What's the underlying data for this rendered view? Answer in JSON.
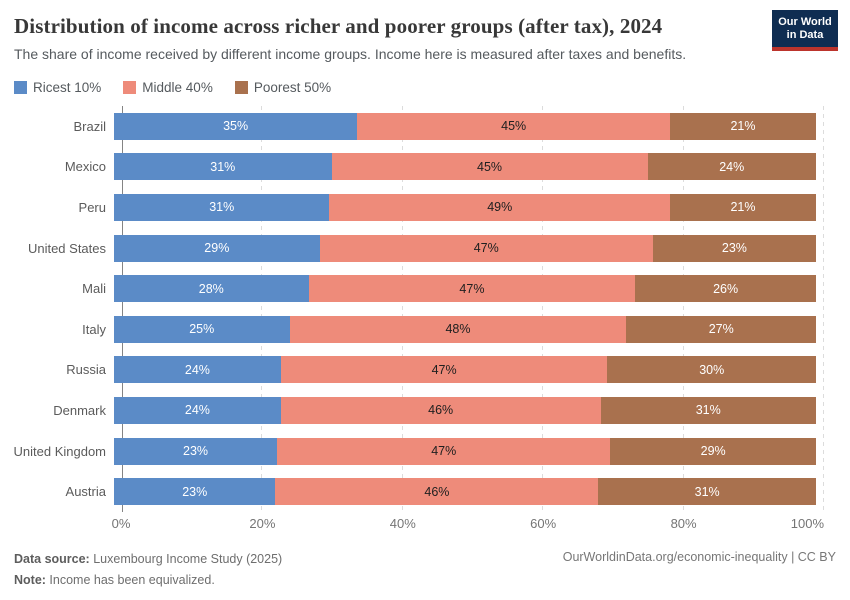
{
  "header": {
    "title": "Distribution of income across richer and poorer groups (after tax), 2024",
    "subtitle": "The share of income received by different income groups. Income here is measured after taxes and benefits.",
    "logo": {
      "line1": "Our World",
      "line2": "in Data"
    }
  },
  "colors": {
    "richest": "#5b8bc7",
    "middle": "#ee8b7a",
    "poorest": "#a9714e",
    "logo_navy": "#0f2d52",
    "logo_red": "#bc342c"
  },
  "legend": [
    {
      "label": "Ricest 10%",
      "color": "#5b8bc7"
    },
    {
      "label": "Middle 40%",
      "color": "#ee8b7a"
    },
    {
      "label": "Poorest 50%",
      "color": "#a9714e"
    }
  ],
  "chart_data": {
    "type": "bar",
    "stacked": true,
    "orientation": "horizontal",
    "normalized_to_100": true,
    "categories": [
      "Brazil",
      "Mexico",
      "Peru",
      "United States",
      "Mali",
      "Italy",
      "Russia",
      "Denmark",
      "United Kingdom",
      "Austria"
    ],
    "series": [
      {
        "name": "Ricest 10%",
        "color": "#5b8bc7",
        "label_color": "#ffffff",
        "values": [
          35,
          31,
          31,
          29,
          28,
          25,
          24,
          24,
          23,
          23
        ]
      },
      {
        "name": "Middle 40%",
        "color": "#ee8b7a",
        "label_color": "#202020",
        "values": [
          45,
          45,
          49,
          47,
          47,
          48,
          47,
          46,
          47,
          46
        ]
      },
      {
        "name": "Poorest 50%",
        "color": "#a9714e",
        "label_color": "#ffffff",
        "values": [
          21,
          24,
          21,
          23,
          26,
          27,
          30,
          31,
          29,
          31
        ]
      }
    ],
    "value_suffix": "%",
    "xlabel": "",
    "ylabel": "",
    "xlim": [
      0,
      100
    ],
    "x_ticks": [
      {
        "pct": 0,
        "label": "0%"
      },
      {
        "pct": 20,
        "label": "20%"
      },
      {
        "pct": 40,
        "label": "40%"
      },
      {
        "pct": 60,
        "label": "60%"
      },
      {
        "pct": 80,
        "label": "80%"
      },
      {
        "pct": 100,
        "label": "100%"
      }
    ],
    "grid": "dashed-vertical",
    "legend_position": "top"
  },
  "footer": {
    "source_label": "Data source:",
    "source_text": " Luxembourg Income Study (2025)",
    "note_label": "Note:",
    "note_text": " Income has been equivalized.",
    "right_text": "OurWorldinData.org/economic-inequality | CC BY"
  }
}
